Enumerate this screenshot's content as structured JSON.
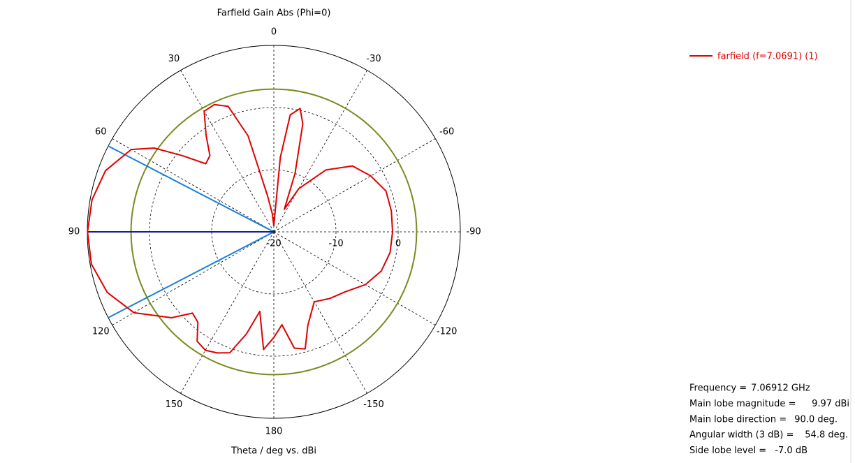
{
  "chart_data": {
    "type": "polar",
    "title": "Farfield Gain Abs (Phi=0)",
    "x_label": "Theta / deg vs. dBi",
    "x": [
      -180,
      -175,
      -170,
      -165,
      -160,
      -150,
      -140,
      -130,
      -120,
      -110,
      -100,
      -90,
      -80,
      -70,
      -60,
      -50,
      -40,
      -30,
      -25,
      -20,
      -15,
      -12,
      -8,
      -5,
      0,
      5,
      10,
      15,
      20,
      25,
      30,
      35,
      40,
      45,
      50,
      55,
      60,
      70,
      80,
      90,
      100,
      110,
      120,
      130,
      135,
      140,
      145,
      150,
      155,
      160,
      165,
      170,
      175
    ],
    "series": [
      {
        "name": "farfield (f=7.0691) (1)",
        "color": "#e00000",
        "values": [
          -3,
          -5,
          -1,
          -0.5,
          -4,
          -7,
          -6,
          -5,
          -3,
          -1.6,
          -1,
          -0.9,
          -0.8,
          -0.8,
          -2,
          -3.5,
          -7,
          -12,
          -16,
          -10,
          -2,
          0.3,
          -1,
          -8,
          -19,
          -17,
          -14,
          -4,
          1.5,
          2.6,
          2.4,
          -1,
          -4,
          -4.5,
          -1,
          3.5,
          6.5,
          8.8,
          9.7,
          9.97,
          9.8,
          8.5,
          6,
          1.5,
          -1.5,
          -1,
          1.5,
          2,
          1.5,
          0.7,
          -3,
          -7,
          -1
        ]
      }
    ],
    "xticks": [
      0,
      30,
      60,
      90,
      120,
      150,
      180,
      -150,
      -120,
      -90,
      -60,
      -30
    ],
    "ylim": [
      -20,
      10
    ],
    "yticks": [
      -20,
      -10,
      0
    ],
    "grid": true,
    "legend": "top-right",
    "info": {
      "labels": [
        "Frequency =",
        "Main lobe magnitude =",
        "Main lobe direction =",
        "Angular width (3 dB) =",
        "Side lobe level ="
      ],
      "values": [
        7.06912,
        9.97,
        90.0,
        54.8,
        -7.0
      ],
      "value_labels": [
        "7.06912 GHz",
        "9.97 dBi",
        "90.0 deg.",
        "54.8 deg.",
        "-7.0 dB"
      ]
    }
  }
}
